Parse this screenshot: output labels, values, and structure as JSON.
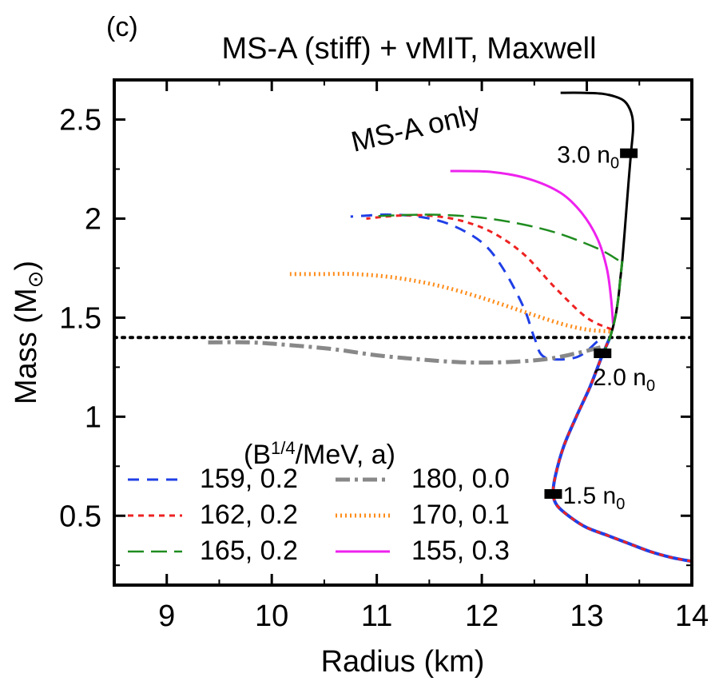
{
  "chart_data": {
    "type": "line",
    "panel_label": "(c)",
    "title": "MS-A (stiff) + vMIT, Maxwell",
    "xlabel": "Radius (km)",
    "ylabel_main": "Mass (M",
    "ylabel_sub": "⊙",
    "ylabel_end": ")",
    "xlim": [
      8.5,
      14
    ],
    "ylim": [
      0.15,
      2.7
    ],
    "xticks": [
      9,
      10,
      11,
      12,
      13,
      14
    ],
    "xtick_labels": [
      "9",
      "10",
      "11",
      "12",
      "13",
      "14"
    ],
    "yticks": [
      0.5,
      1,
      1.5,
      2,
      2.5
    ],
    "ytick_labels": [
      "0.5",
      "1",
      "1.5",
      "2",
      "2.5"
    ],
    "grid": false,
    "reference_line": {
      "y": 1.4,
      "style": "dotted",
      "color": "#000000"
    },
    "baseline": {
      "label": "MS-A only",
      "color": "#000000",
      "points": [
        [
          14.0,
          0.27
        ],
        [
          13.8,
          0.29
        ],
        [
          13.6,
          0.32
        ],
        [
          13.4,
          0.36
        ],
        [
          13.2,
          0.4
        ],
        [
          13.0,
          0.44
        ],
        [
          12.85,
          0.49
        ],
        [
          12.72,
          0.55
        ],
        [
          12.68,
          0.61
        ],
        [
          12.7,
          0.7
        ],
        [
          12.78,
          0.85
        ],
        [
          12.9,
          1.0
        ],
        [
          13.03,
          1.15
        ],
        [
          13.14,
          1.3
        ],
        [
          13.22,
          1.4
        ],
        [
          13.27,
          1.5
        ],
        [
          13.3,
          1.6
        ],
        [
          13.32,
          1.7
        ],
        [
          13.34,
          1.8
        ],
        [
          13.37,
          2.0
        ],
        [
          13.4,
          2.2
        ],
        [
          13.42,
          2.33
        ],
        [
          13.44,
          2.45
        ],
        [
          13.43,
          2.52
        ],
        [
          13.38,
          2.58
        ],
        [
          13.3,
          2.61
        ],
        [
          13.15,
          2.63
        ],
        [
          12.95,
          2.635
        ],
        [
          12.75,
          2.635
        ]
      ]
    },
    "density_markers": [
      {
        "label_main": "3.0 n",
        "label_sub": "0",
        "x": 13.4,
        "y": 2.33
      },
      {
        "label_main": "2.0 n",
        "label_sub": "0",
        "x": 13.15,
        "y": 1.32
      },
      {
        "label_main": "1.5 n",
        "label_sub": "0",
        "x": 12.68,
        "y": 0.61
      }
    ],
    "legend_title": "(B1/4/MeV, a)",
    "legend_title_parts": {
      "pre": "(B",
      "sup": "1/4",
      "post": "/MeV, a)"
    },
    "legend_position": "bottom-left",
    "series": [
      {
        "name": "159, 0.2",
        "color": "#1f3fe6",
        "dash": "14,10",
        "width": 3,
        "points": [
          [
            13.1,
            1.38
          ],
          [
            12.9,
            1.3
          ],
          [
            12.6,
            1.3
          ],
          [
            12.5,
            1.4
          ],
          [
            12.4,
            1.55
          ],
          [
            12.2,
            1.75
          ],
          [
            12.0,
            1.88
          ],
          [
            11.7,
            1.97
          ],
          [
            11.4,
            2.01
          ],
          [
            11.1,
            2.02
          ],
          [
            10.9,
            2.015
          ],
          [
            10.75,
            2.01
          ]
        ]
      },
      {
        "name": "162, 0.2",
        "color": "#ee2222",
        "dash": "7,6",
        "width": 3,
        "points": [
          [
            13.24,
            1.44
          ],
          [
            13.0,
            1.5
          ],
          [
            12.7,
            1.65
          ],
          [
            12.4,
            1.82
          ],
          [
            12.1,
            1.93
          ],
          [
            11.8,
            1.99
          ],
          [
            11.5,
            2.015
          ],
          [
            11.2,
            2.015
          ],
          [
            10.9,
            2.0
          ]
        ]
      },
      {
        "name": "165, 0.2",
        "color": "#1f8c1f",
        "dash": "20,9",
        "width": 2.5,
        "points": [
          [
            13.3,
            1.79
          ],
          [
            13.1,
            1.85
          ],
          [
            12.7,
            1.93
          ],
          [
            12.3,
            1.98
          ],
          [
            11.9,
            2.01
          ],
          [
            11.5,
            2.02
          ],
          [
            11.1,
            2.015
          ],
          [
            10.95,
            2.01
          ]
        ]
      },
      {
        "name": "180, 0.0",
        "color": "#888888",
        "dash": "18,6,4,6",
        "width": 5,
        "points": [
          [
            13.13,
            1.35
          ],
          [
            12.9,
            1.32
          ],
          [
            12.6,
            1.29
          ],
          [
            12.2,
            1.275
          ],
          [
            11.8,
            1.275
          ],
          [
            11.4,
            1.29
          ],
          [
            11.0,
            1.31
          ],
          [
            10.6,
            1.34
          ],
          [
            10.2,
            1.36
          ],
          [
            9.8,
            1.375
          ],
          [
            9.35,
            1.375
          ]
        ]
      },
      {
        "name": "170, 0.1",
        "color": "#ff8c1a",
        "dash": "2,4",
        "width": 5,
        "points": [
          [
            13.22,
            1.43
          ],
          [
            13.0,
            1.44
          ],
          [
            12.75,
            1.47
          ],
          [
            12.4,
            1.53
          ],
          [
            12.0,
            1.6
          ],
          [
            11.6,
            1.66
          ],
          [
            11.2,
            1.7
          ],
          [
            10.8,
            1.72
          ],
          [
            10.45,
            1.72
          ],
          [
            10.15,
            1.72
          ]
        ]
      },
      {
        "name": "155, 0.3",
        "color": "#ee22ee",
        "dash": "",
        "width": 3,
        "points": [
          [
            13.25,
            1.47
          ],
          [
            13.23,
            1.6
          ],
          [
            13.19,
            1.75
          ],
          [
            13.1,
            1.9
          ],
          [
            12.95,
            2.03
          ],
          [
            12.75,
            2.13
          ],
          [
            12.45,
            2.2
          ],
          [
            12.1,
            2.235
          ],
          [
            11.7,
            2.24
          ]
        ]
      }
    ]
  }
}
